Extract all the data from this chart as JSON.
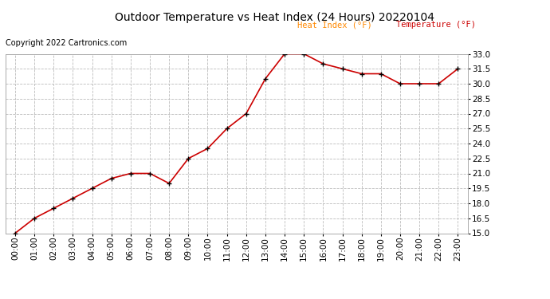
{
  "title": "Outdoor Temperature vs Heat Index (24 Hours) 20220104",
  "copyright": "Copyright 2022 Cartronics.com",
  "legend_heat_index": "Heat Index (°F)",
  "legend_temperature": "Temperature (°F)",
  "hours": [
    "00:00",
    "01:00",
    "02:00",
    "03:00",
    "04:00",
    "05:00",
    "06:00",
    "07:00",
    "08:00",
    "09:00",
    "10:00",
    "11:00",
    "12:00",
    "13:00",
    "14:00",
    "15:00",
    "16:00",
    "17:00",
    "18:00",
    "19:00",
    "20:00",
    "21:00",
    "22:00",
    "23:00"
  ],
  "temperature": [
    15.0,
    16.5,
    17.5,
    18.5,
    19.5,
    20.5,
    21.0,
    21.0,
    20.0,
    22.5,
    23.5,
    25.5,
    27.0,
    30.5,
    33.0,
    33.0,
    32.0,
    31.5,
    31.0,
    31.0,
    30.0,
    30.0,
    30.0,
    31.5
  ],
  "heat_index": [
    15.0,
    16.5,
    17.5,
    18.5,
    19.5,
    20.5,
    21.0,
    21.0,
    20.0,
    22.5,
    23.5,
    25.5,
    27.0,
    30.5,
    33.0,
    33.0,
    32.0,
    31.5,
    31.0,
    31.0,
    30.0,
    30.0,
    30.0,
    31.5
  ],
  "ylim": [
    15.0,
    33.0
  ],
  "yticks": [
    15.0,
    16.5,
    18.0,
    19.5,
    21.0,
    22.5,
    24.0,
    25.5,
    27.0,
    28.5,
    30.0,
    31.5,
    33.0
  ],
  "line_color": "#cc0000",
  "marker_color": "#000000",
  "background_color": "#ffffff",
  "grid_color": "#bbbbbb",
  "title_color": "#000000",
  "copyright_color": "#000000",
  "legend_heat_color": "#ff8800",
  "legend_temp_color": "#cc0000"
}
